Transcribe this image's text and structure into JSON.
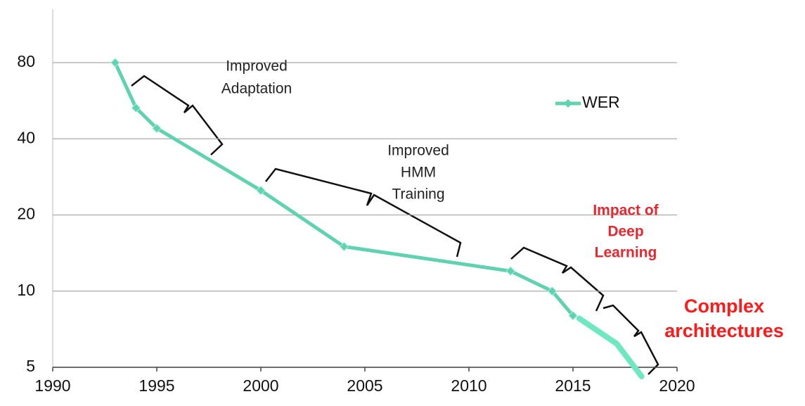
{
  "chart_data": {
    "type": "line",
    "xlim": [
      1990,
      2020
    ],
    "xticks": [
      1990,
      1995,
      2000,
      2005,
      2010,
      2015,
      2020
    ],
    "ylim": [
      5,
      130
    ],
    "yticks": [
      5,
      10,
      20,
      40,
      80
    ],
    "log_y": true,
    "grid": true,
    "legend": "upper right",
    "series": [
      {
        "name": "WER",
        "color": "#5fd3b0",
        "x": [
          1993,
          1994,
          1995,
          2000,
          2004,
          2012,
          2014,
          2015
        ],
        "values": [
          80,
          53,
          44,
          25,
          15,
          12,
          10,
          8
        ]
      },
      {
        "color": "#6ee8c0",
        "x": [
          2015.3,
          2017.1,
          2018.3
        ],
        "values": [
          7.8,
          6.2,
          4.6
        ]
      }
    ],
    "annotations": [
      {
        "lines": [
          "Improved",
          "Adaptation"
        ],
        "color": "#222222"
      },
      {
        "lines": [
          "Improved",
          "HMM",
          "Training"
        ],
        "color": "#222222"
      },
      {
        "lines": [
          "Impact of",
          "Deep",
          "Learning"
        ],
        "color": "#e8262e"
      },
      {
        "lines": [
          "Complex",
          "architectures"
        ],
        "color": "#ff1a1a"
      }
    ]
  }
}
